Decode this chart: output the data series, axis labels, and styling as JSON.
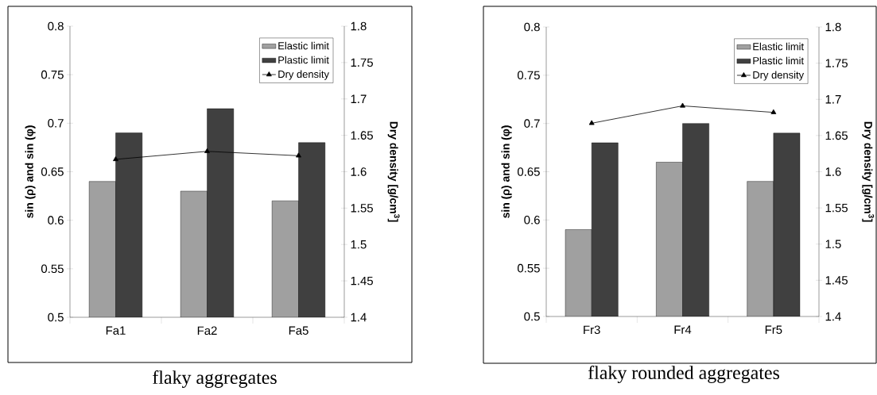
{
  "chart_data": [
    {
      "type": "bar",
      "title": "flaky aggregates",
      "ylabel": "sin (ρ) and sin (φ)",
      "y2label": "Dry density [g/cm$^{3}$]",
      "categories": [
        "Fa1",
        "Fa2",
        "Fa5"
      ],
      "series": [
        {
          "name": "Elastic limit",
          "color": "#a0a0a0",
          "values": [
            0.64,
            0.63,
            0.62
          ]
        },
        {
          "name": "Plastic limit",
          "color": "#404040",
          "values": [
            0.69,
            0.715,
            0.68
          ]
        },
        {
          "name": "Dry density",
          "type": "line",
          "axis": "y2",
          "color": "#000000",
          "marker": "triangle",
          "values": [
            1.617,
            1.628,
            1.622
          ]
        }
      ],
      "ylim": [
        0.5,
        0.8
      ],
      "yticks": [
        0.5,
        0.55,
        0.6,
        0.65,
        0.7,
        0.75,
        0.8
      ],
      "y2lim": [
        1.4,
        1.8
      ],
      "y2ticks": [
        1.4,
        1.45,
        1.5,
        1.55,
        1.6,
        1.65,
        1.7,
        1.75,
        1.8
      ],
      "legend": "top right"
    },
    {
      "type": "bar",
      "title": "flaky rounded aggregates",
      "ylabel": "sin (ρ) and sin (φ)",
      "y2label": "Dry density [g/cm$^{3}$]",
      "categories": [
        "Fr3",
        "Fr4",
        "Fr5"
      ],
      "series": [
        {
          "name": "Elastic limit",
          "color": "#a0a0a0",
          "values": [
            0.59,
            0.66,
            0.64
          ]
        },
        {
          "name": "Plastic limit",
          "color": "#404040",
          "values": [
            0.68,
            0.7,
            0.69
          ]
        },
        {
          "name": "Dry density",
          "type": "line",
          "axis": "y2",
          "color": "#000000",
          "marker": "triangle",
          "values": [
            1.667,
            1.691,
            1.682
          ]
        }
      ],
      "ylim": [
        0.5,
        0.8
      ],
      "yticks": [
        0.5,
        0.55,
        0.6,
        0.65,
        0.7,
        0.75,
        0.8
      ],
      "y2lim": [
        1.4,
        1.8
      ],
      "y2ticks": [
        1.4,
        1.45,
        1.5,
        1.55,
        1.6,
        1.65,
        1.7,
        1.75,
        1.8
      ],
      "legend": "top right"
    }
  ]
}
